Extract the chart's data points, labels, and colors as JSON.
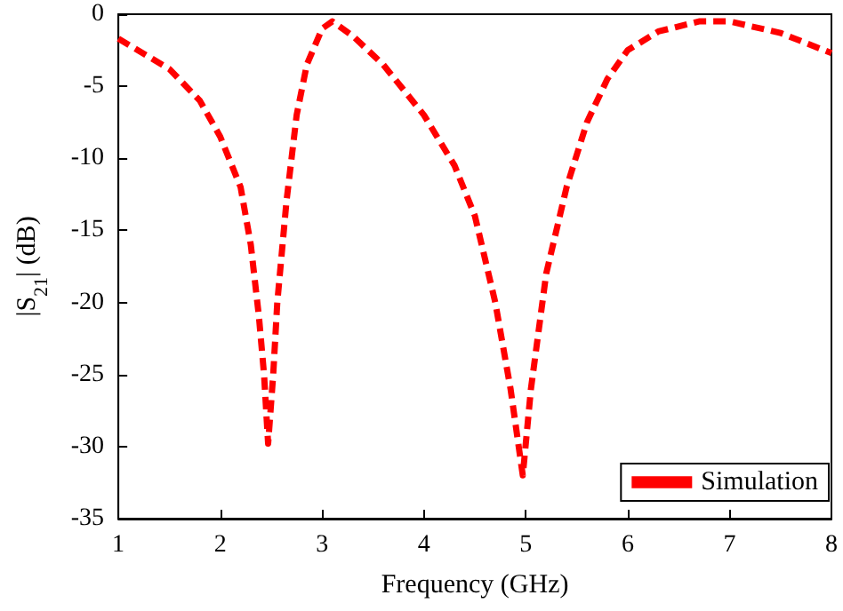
{
  "chart_data": {
    "type": "line",
    "xlabel": "Frequency (GHz)",
    "ylabel": "|S$_{21}$| (dB)",
    "xlim": [
      1,
      8
    ],
    "xticks": [
      1,
      2,
      3,
      4,
      5,
      6,
      7,
      8
    ],
    "ylim": [
      -35,
      0
    ],
    "yticks": [
      -35,
      -30,
      -25,
      -20,
      -15,
      -10,
      -5,
      0
    ],
    "grid": false,
    "legend": "bottom right",
    "marker": "none",
    "line_style": "dashed",
    "series": [
      {
        "name": "Simulation",
        "color": "#ff0000",
        "x": [
          1,
          1.5,
          1.8,
          2,
          2.2,
          2.3,
          2.38,
          2.43,
          2.47,
          2.52,
          2.56,
          2.65,
          2.75,
          2.85,
          3,
          3.1,
          3.3,
          3.6,
          4,
          4.3,
          4.5,
          4.7,
          4.85,
          4.97,
          5.05,
          5.2,
          5.4,
          5.6,
          5.8,
          6,
          6.3,
          6.7,
          7,
          7.5,
          8
        ],
        "values": [
          -1.7,
          -3.8,
          -6,
          -8.5,
          -12,
          -16,
          -21,
          -25,
          -29.8,
          -25,
          -20,
          -13,
          -7,
          -3.5,
          -1,
          -0.5,
          -1.5,
          -3.5,
          -7,
          -10.5,
          -14,
          -20,
          -26,
          -32,
          -26,
          -18,
          -12,
          -7.5,
          -4.5,
          -2.5,
          -1.2,
          -0.5,
          -0.5,
          -1.3,
          -2.7
        ]
      }
    ]
  }
}
